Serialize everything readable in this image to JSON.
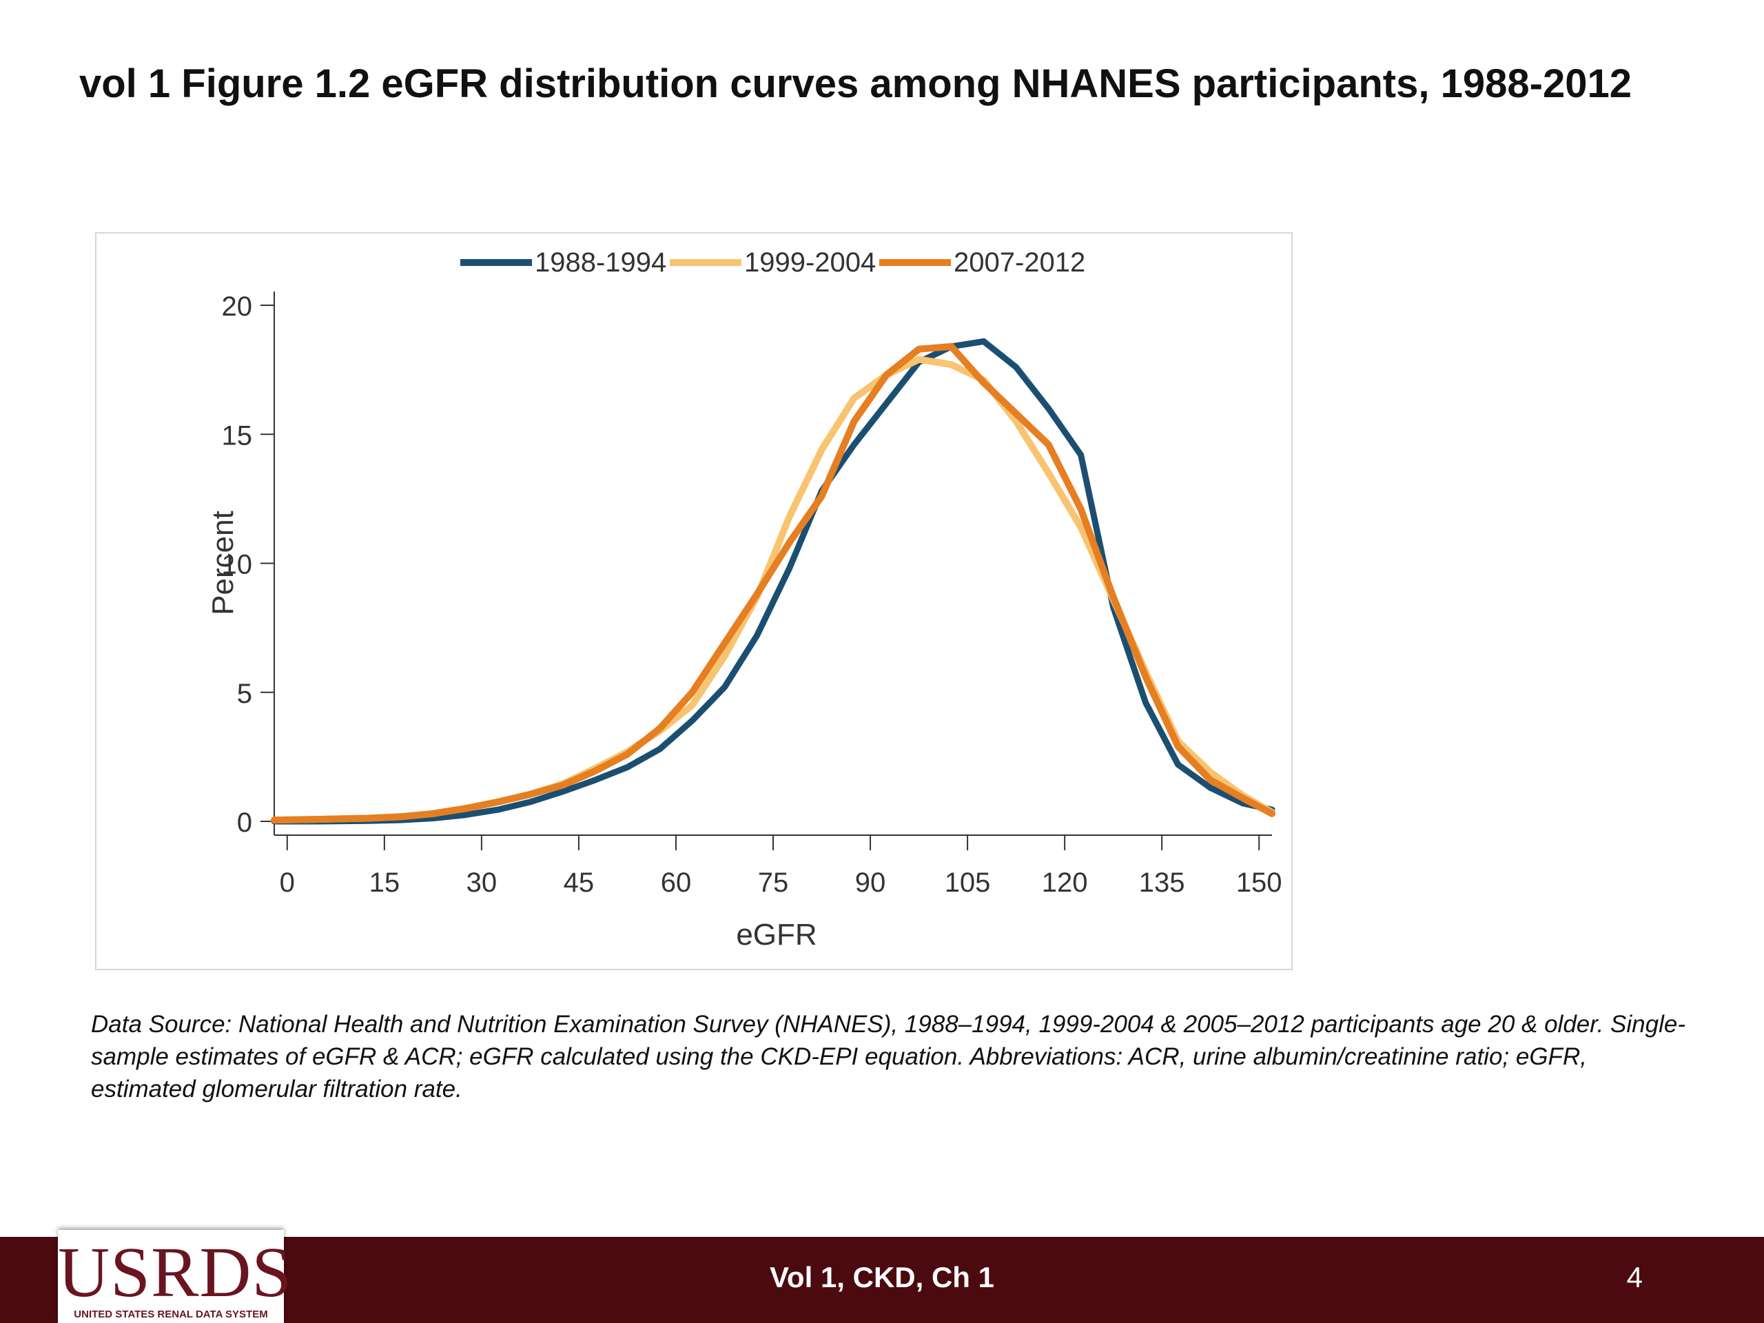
{
  "slide": {
    "title": "vol 1 Figure 1.2  eGFR distribution curves among NHANES participants, 1988-2012",
    "footnote": "Data Source: National Health and Nutrition Examination Survey (NHANES), 1988–1994, 1999-2004 & 2005–2012 participants age 20 & older. Single-sample estimates of eGFR & ACR; eGFR calculated using the CKD-EPI equation. Abbreviations: ACR, urine albumin/creatinine ratio; eGFR, estimated glomerular filtration rate.",
    "footer_label": "Vol 1, CKD, Ch 1",
    "page_number": "4",
    "logo_text": "USRDS",
    "logo_subtext": "UNITED STATES RENAL DATA SYSTEM"
  },
  "chart_data": {
    "type": "line",
    "xlabel": "eGFR",
    "ylabel": "Percent",
    "xlim": [
      -2,
      152
    ],
    "ylim": [
      0,
      20
    ],
    "xticks": [
      0,
      15,
      30,
      45,
      60,
      75,
      90,
      105,
      120,
      135,
      150
    ],
    "yticks": [
      0,
      5,
      10,
      15,
      20
    ],
    "grid": false,
    "legend_position": "top-center",
    "x": [
      -2,
      5,
      12.5,
      17.5,
      22.5,
      27.5,
      32.5,
      37.5,
      42.5,
      47.5,
      52.5,
      57.5,
      62.5,
      67.5,
      72.5,
      77.5,
      82.5,
      87.5,
      92.5,
      97.5,
      102.5,
      107.5,
      112.5,
      117.5,
      122.5,
      127.5,
      132.5,
      137.5,
      142.5,
      147.5,
      152
    ],
    "series": [
      {
        "name": "1988-1994",
        "color": "#1b4f72",
        "values": [
          0.0,
          0.0,
          0.02,
          0.05,
          0.12,
          0.25,
          0.45,
          0.75,
          1.15,
          1.6,
          2.1,
          2.8,
          3.9,
          5.2,
          7.2,
          9.8,
          12.8,
          14.6,
          16.2,
          17.8,
          18.4,
          18.6,
          17.6,
          16.0,
          14.2,
          8.3,
          4.6,
          2.2,
          1.3,
          0.7,
          0.45
        ]
      },
      {
        "name": "1999-2004",
        "color": "#f8c471",
        "values": [
          0.05,
          0.08,
          0.12,
          0.18,
          0.3,
          0.5,
          0.75,
          1.05,
          1.45,
          2.05,
          2.7,
          3.5,
          4.5,
          6.4,
          8.7,
          11.8,
          14.4,
          16.4,
          17.3,
          17.9,
          17.7,
          17.1,
          15.5,
          13.5,
          11.4,
          8.6,
          5.8,
          3.1,
          1.9,
          1.0,
          0.35
        ]
      },
      {
        "name": "2007-2012",
        "color": "#e67e22",
        "values": [
          0.05,
          0.08,
          0.12,
          0.18,
          0.3,
          0.5,
          0.75,
          1.05,
          1.4,
          1.95,
          2.6,
          3.6,
          5.0,
          6.9,
          8.8,
          10.8,
          12.6,
          15.5,
          17.3,
          18.3,
          18.4,
          17.0,
          15.8,
          14.6,
          12.1,
          8.7,
          5.6,
          2.9,
          1.6,
          0.9,
          0.3
        ]
      }
    ]
  }
}
